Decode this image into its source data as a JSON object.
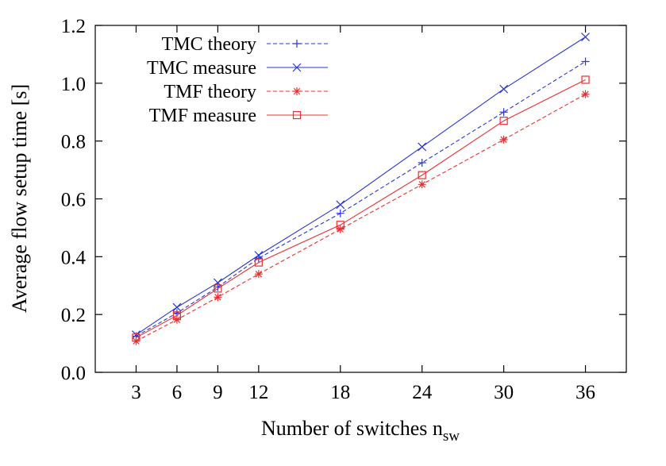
{
  "chart_data": {
    "type": "line",
    "xlabel": "Number of switches n",
    "xlabel_sub": "sw",
    "ylabel": "Average flow setup time [s]",
    "x": [
      3,
      6,
      9,
      12,
      18,
      24,
      30,
      36
    ],
    "x_tick_labels": [
      "3",
      "6",
      "9",
      "12",
      "18",
      "24",
      "30",
      "36"
    ],
    "xlim": [
      0,
      39
    ],
    "ylim": [
      0.0,
      1.2
    ],
    "y_ticks": [
      0.0,
      0.2,
      0.4,
      0.6,
      0.8,
      1.0,
      1.2
    ],
    "y_tick_labels": [
      "0.0",
      "0.2",
      "0.4",
      "0.6",
      "0.8",
      "1.0",
      "1.2"
    ],
    "grid": false,
    "legend_position": "top-left",
    "series": [
      {
        "name": "TMC theory",
        "values": [
          0.125,
          0.205,
          0.295,
          0.395,
          0.55,
          0.725,
          0.9,
          1.075
        ],
        "color": "#2a35d8",
        "dash": "dashed",
        "marker": "plus"
      },
      {
        "name": "TMC measure",
        "values": [
          0.13,
          0.225,
          0.31,
          0.405,
          0.58,
          0.78,
          0.98,
          1.16
        ],
        "color": "#2a35d8",
        "dash": "solid",
        "marker": "cross"
      },
      {
        "name": "TMF theory",
        "values": [
          0.108,
          0.182,
          0.26,
          0.34,
          0.495,
          0.65,
          0.805,
          0.962
        ],
        "color": "#e83030",
        "dash": "dashed",
        "marker": "star"
      },
      {
        "name": "TMF measure",
        "values": [
          0.12,
          0.197,
          0.29,
          0.38,
          0.51,
          0.682,
          0.87,
          1.012
        ],
        "color": "#e83030",
        "dash": "solid",
        "marker": "square"
      }
    ]
  }
}
